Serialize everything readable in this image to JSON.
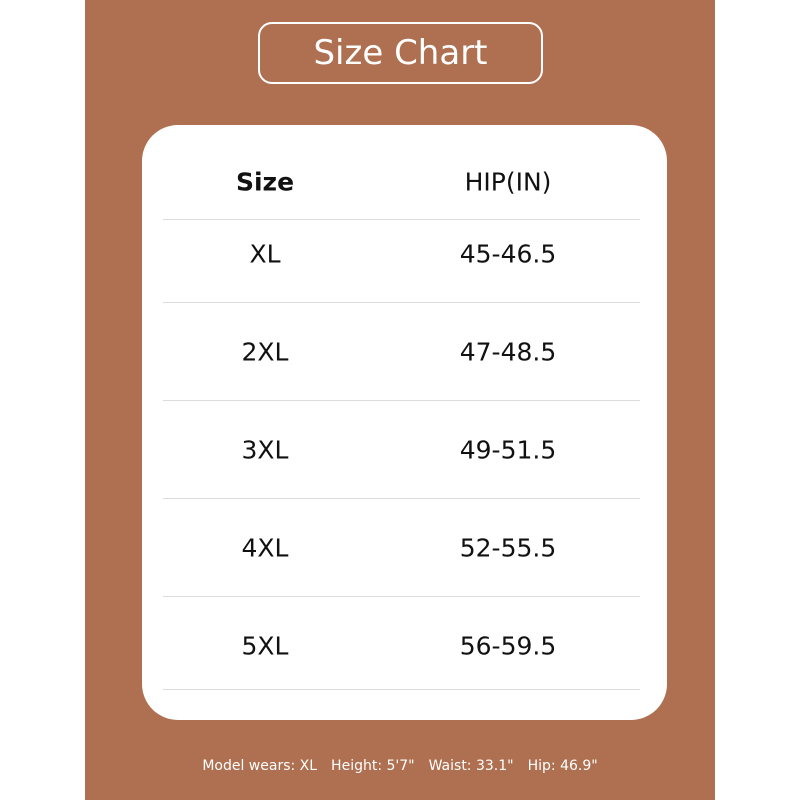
{
  "header": {
    "title": "Size Chart"
  },
  "table": {
    "columns": [
      "Size",
      "HIP(IN)"
    ],
    "rows": [
      [
        "XL",
        "45-46.5"
      ],
      [
        "2XL",
        "47-48.5"
      ],
      [
        "3XL",
        "49-51.5"
      ],
      [
        "4XL",
        "52-55.5"
      ],
      [
        "5XL",
        "56-59.5"
      ]
    ]
  },
  "footer": {
    "items": [
      "Model wears: XL",
      "Height: 5'7\"",
      "Waist: 33.1\"",
      "Hip: 46.9\""
    ]
  }
}
